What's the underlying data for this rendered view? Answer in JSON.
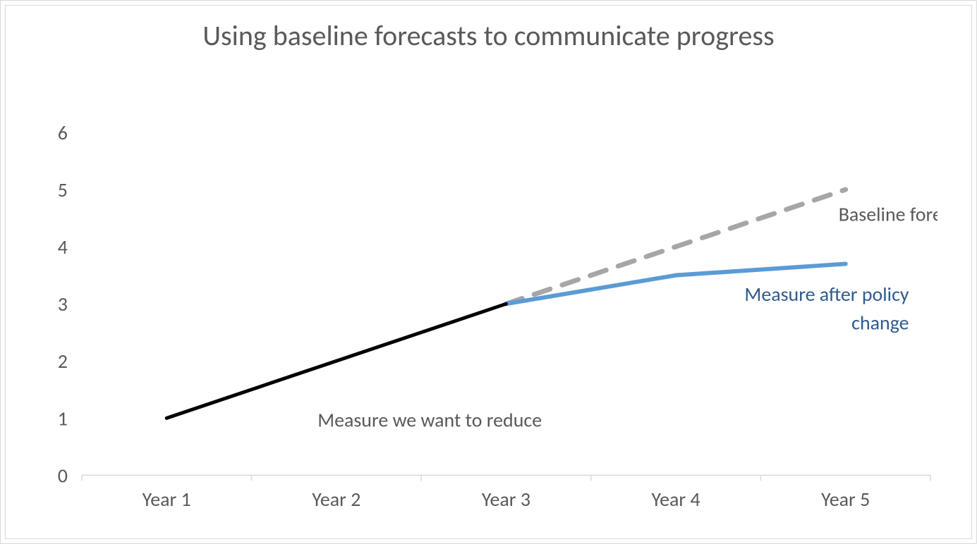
{
  "chart": {
    "type": "line",
    "title": "Using baseline forecasts to communicate progress",
    "title_fontsize": 40,
    "title_color": "#595959",
    "background_color": "#ffffff",
    "border_color": "#d9d9d9",
    "axis_color": "#d9d9d9",
    "tick_label_color": "#595959",
    "tick_fontsize": 28,
    "y": {
      "min": 0,
      "max": 6,
      "ticks": [
        0,
        1,
        2,
        3,
        4,
        5,
        6
      ],
      "labels": [
        "0",
        "1",
        "2",
        "3",
        "4",
        "5",
        "6"
      ]
    },
    "x": {
      "categories": [
        "Year 1",
        "Year 2",
        "Year 3",
        "Year 4",
        "Year 5"
      ]
    },
    "series": {
      "measured": {
        "label": "Measure we want to reduce",
        "color": "#000000",
        "line_width": 5,
        "dash": "none",
        "x_index": [
          0,
          1,
          2
        ],
        "y": [
          1,
          2,
          3
        ]
      },
      "baseline": {
        "label": "Baseline forecast",
        "color": "#a6a6a6",
        "line_width": 7,
        "dash": "24,18",
        "x_index": [
          2,
          3,
          4
        ],
        "y": [
          3,
          4,
          5
        ]
      },
      "policy": {
        "label": "Measure after policy change",
        "color": "#5b9bd5",
        "line_width": 6,
        "dash": "none",
        "x_index": [
          2,
          3,
          4
        ],
        "y": [
          3,
          3.5,
          3.7
        ]
      }
    },
    "annotations": {
      "measured_label": {
        "text": "Measure we want to reduce",
        "color": "#595959",
        "fontsize": 28
      },
      "baseline_label": {
        "text": "Baseline forecast",
        "color": "#595959",
        "fontsize": 28
      },
      "policy_label_line1": {
        "text": "Measure after policy",
        "color": "#2f5b8f",
        "fontsize": 28
      },
      "policy_label_line2": {
        "text": "change",
        "color": "#2f5b8f",
        "fontsize": 28
      }
    }
  }
}
